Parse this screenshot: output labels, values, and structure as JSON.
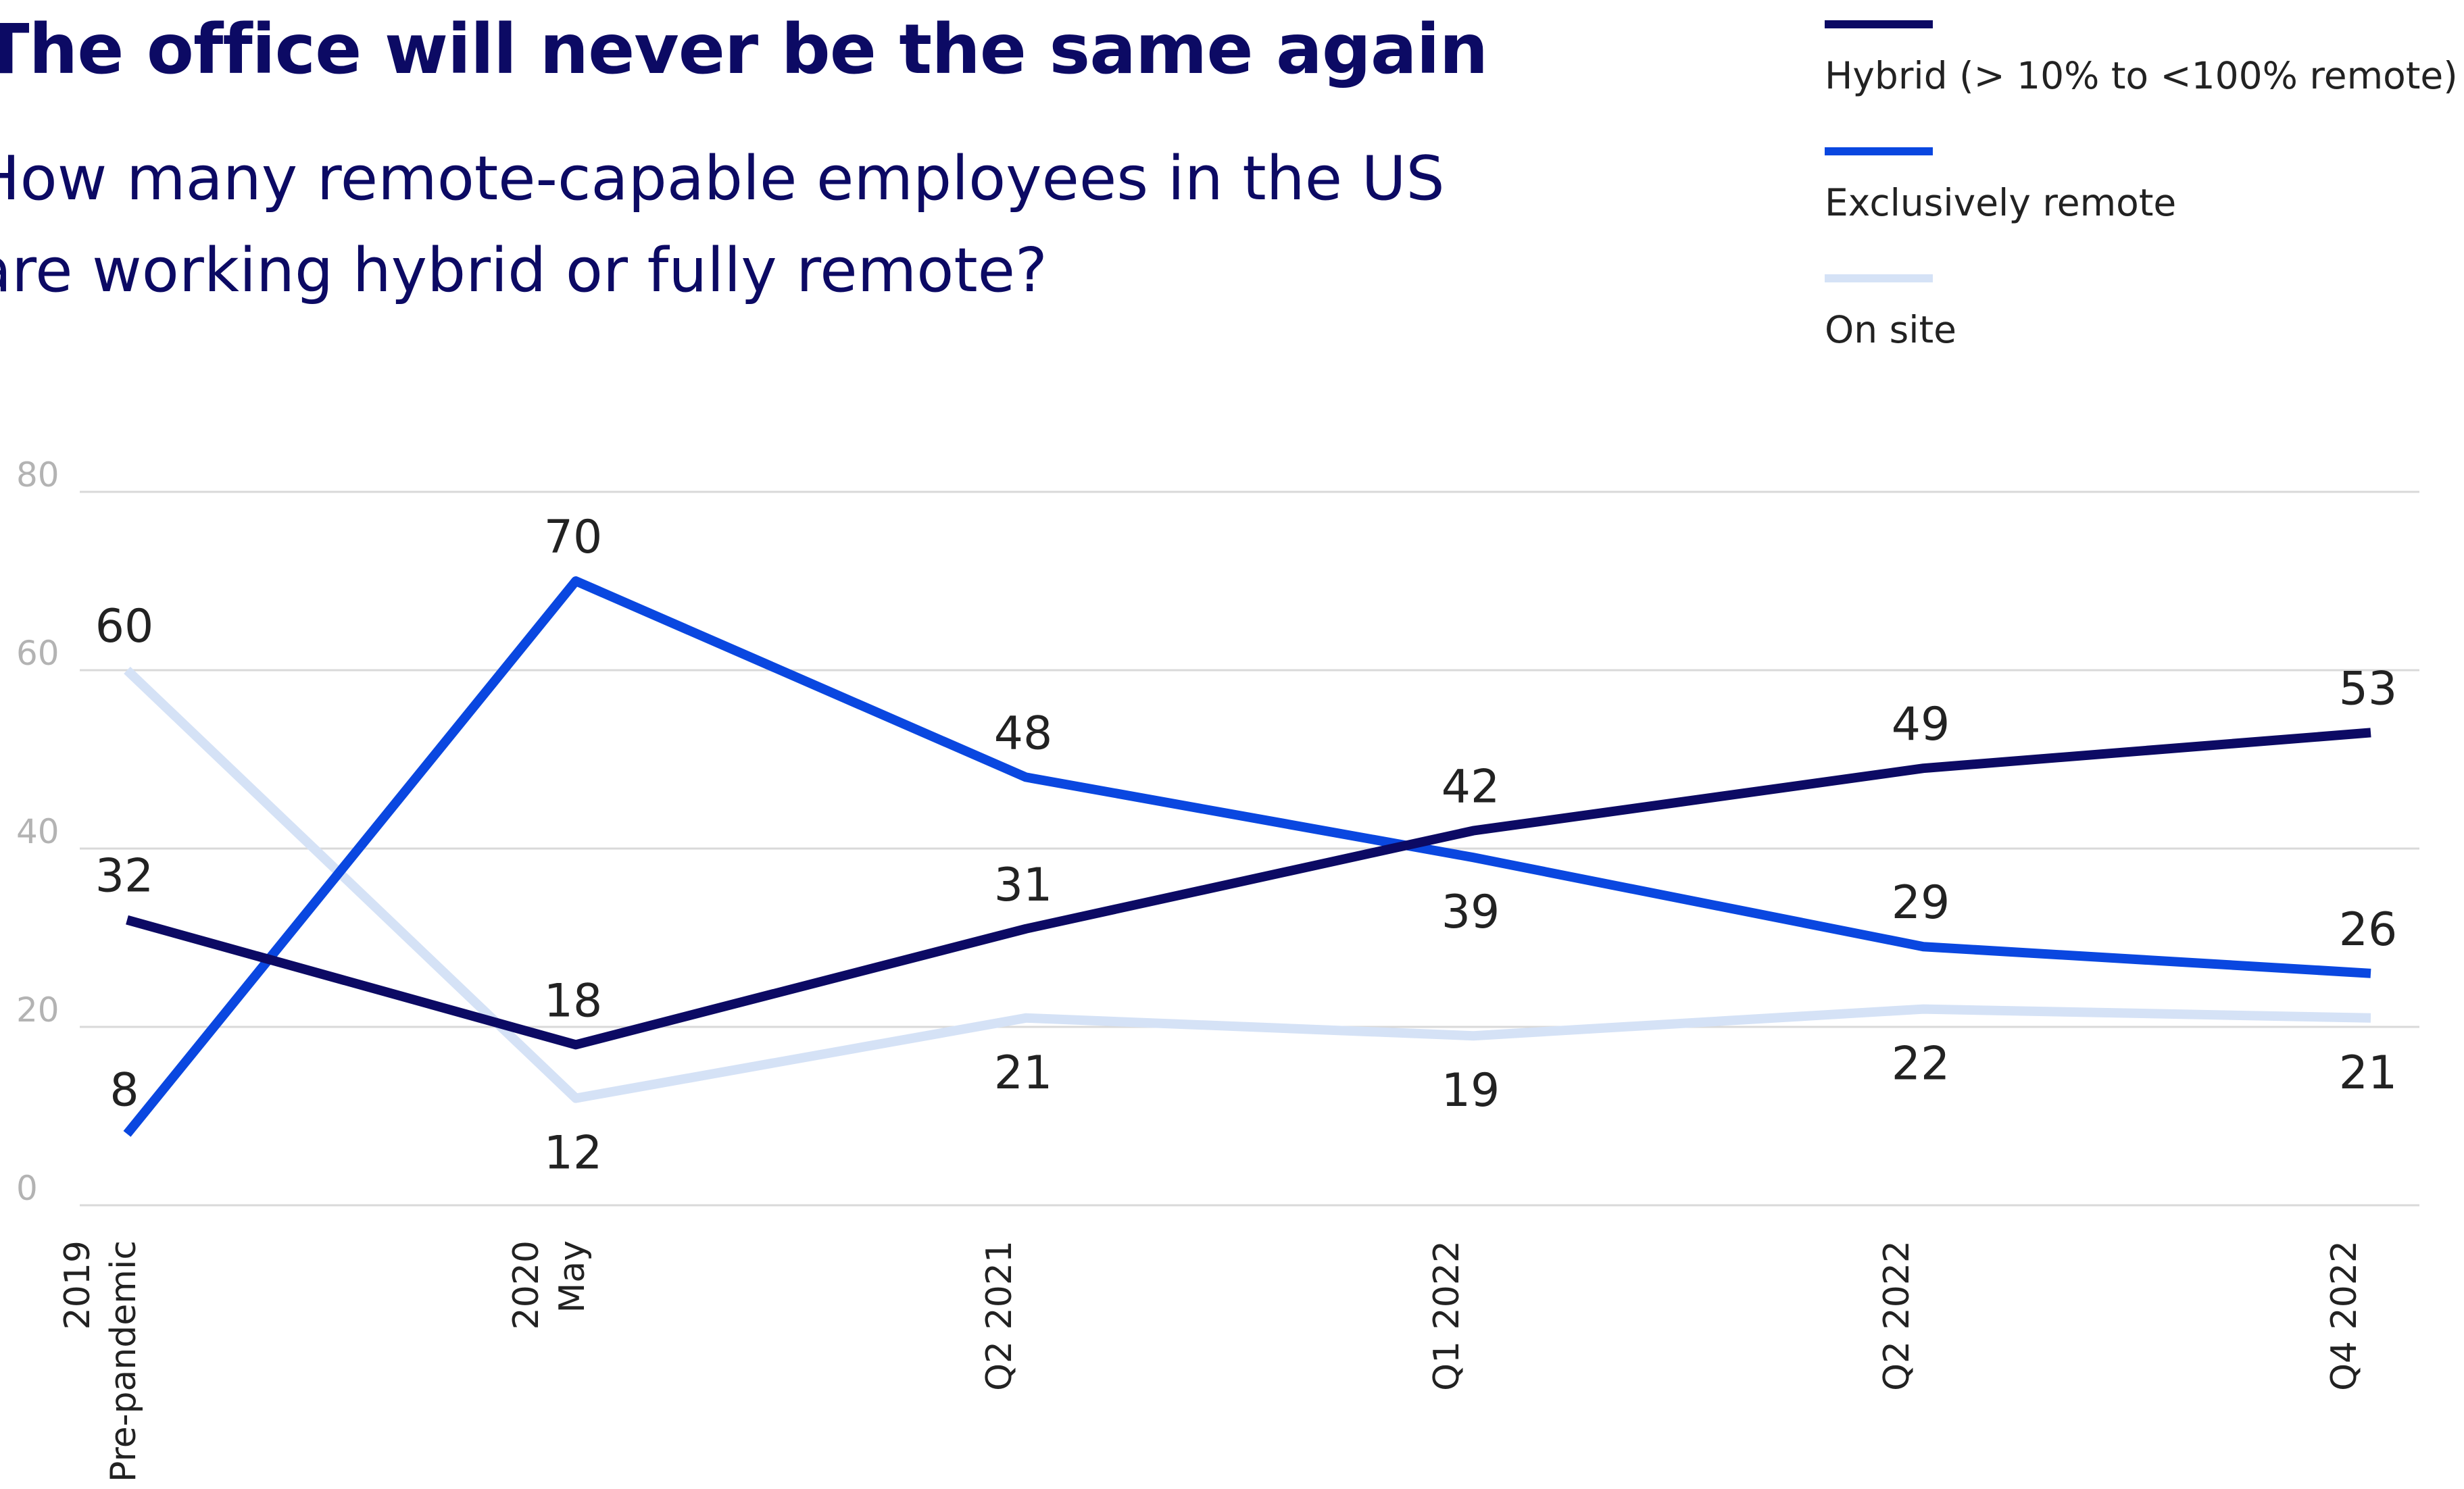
{
  "chart_data": {
    "type": "line",
    "title": "The office will never be the same again",
    "subtitle": [
      "How many remote-capable employees in the US",
      "are working hybrid or fully remote?"
    ],
    "xlabel": "",
    "ylabel": "",
    "categories": [
      [
        "2019",
        "Pre-pandemic"
      ],
      [
        "2020",
        "May"
      ],
      [
        "Q2 2021"
      ],
      [
        "Q1 2022"
      ],
      [
        "Q2 2022"
      ],
      [
        "Q4 2022"
      ]
    ],
    "ylim": [
      0,
      80
    ],
    "yticks": [
      0,
      20,
      40,
      60,
      80
    ],
    "grid": true,
    "legend_position": "top-right",
    "series": [
      {
        "name": "Hybrid (> 10%  to <100% remote)",
        "values": [
          32,
          18,
          31,
          42,
          49,
          53
        ],
        "color": "#0c0a64",
        "labels": [
          "above",
          "above",
          "above",
          "above",
          "above",
          "above"
        ]
      },
      {
        "name": "Exclusively remote",
        "values": [
          8,
          70,
          48,
          39,
          29,
          26
        ],
        "color": "#0a47e0",
        "labels": [
          "above",
          "above",
          "above",
          "below",
          "above",
          "above"
        ]
      },
      {
        "name": "On site",
        "values": [
          60,
          12,
          21,
          19,
          22,
          21
        ],
        "color": "#d5e2f6",
        "labels": [
          "above",
          "below",
          "below",
          "below",
          "below",
          "below"
        ]
      }
    ]
  }
}
